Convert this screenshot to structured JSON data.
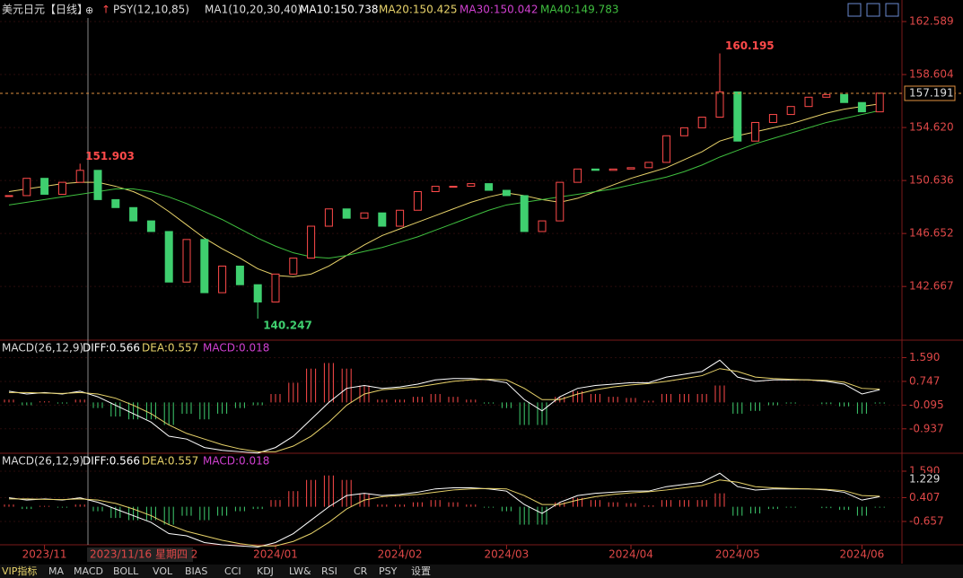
{
  "toolbar": {
    "symbol": "美元日元【日线】",
    "indicator": "PSY(12,10,85)",
    "ma_set": "MA1(10,20,30,40)",
    "ma10": "MA10:150.738",
    "ma20": "MA20:150.425",
    "ma30": "MA30:150.042",
    "ma40": "MA40:149.783"
  },
  "cursor_date": "2023/11/16 星期四 2",
  "tabs": [
    "VIP指标",
    "MA",
    "MACD",
    "BOLL",
    "VOL",
    "BIAS",
    "CCI",
    "KDJ",
    "LW&",
    "RSI",
    "CR",
    "PSY",
    "设置"
  ],
  "chart_data": [
    {
      "type": "candlestick",
      "series": [
        {
          "name": "close",
          "color": "#ff4a4a",
          "values": [
            149.5,
            150.8,
            149.6,
            150.5,
            151.4,
            149.2,
            148.6,
            147.6,
            146.8,
            143.0,
            146.2,
            142.2,
            144.2,
            142.8,
            141.5,
            143.6,
            144.8,
            147.2,
            148.5,
            147.8,
            148.2,
            147.2,
            148.4,
            149.8,
            150.2,
            150.2,
            150.4,
            149.9,
            149.5,
            146.8,
            147.6,
            150.5,
            151.5,
            151.4,
            151.5,
            151.6,
            152.0,
            154.0,
            154.6,
            155.4,
            157.3,
            153.6,
            155.0,
            155.6,
            156.2,
            156.9,
            157.1,
            156.5,
            155.8,
            157.2
          ]
        },
        {
          "name": "MA20",
          "color": "#e8d36a",
          "values": [
            149.8,
            150.0,
            150.2,
            150.4,
            150.5,
            150.5,
            150.2,
            149.8,
            149.2,
            148.3,
            147.3,
            146.3,
            145.5,
            144.8,
            144.0,
            143.5,
            143.4,
            143.6,
            144.2,
            145.0,
            145.8,
            146.5,
            147.0,
            147.5,
            148.0,
            148.5,
            149.0,
            149.4,
            149.7,
            149.5,
            149.2,
            149.0,
            149.3,
            149.8,
            150.3,
            150.8,
            151.2,
            151.6,
            152.2,
            152.8,
            153.6,
            154.0,
            154.3,
            154.6,
            154.9,
            155.3,
            155.7,
            156.0,
            156.2,
            156.4
          ]
        },
        {
          "name": "MA40",
          "color": "#3fbf3f",
          "values": [
            148.8,
            149.0,
            149.2,
            149.4,
            149.6,
            149.8,
            150.0,
            150.0,
            149.8,
            149.4,
            148.9,
            148.3,
            147.7,
            147.0,
            146.3,
            145.7,
            145.2,
            144.9,
            144.8,
            145.0,
            145.3,
            145.6,
            146.0,
            146.4,
            146.9,
            147.4,
            147.9,
            148.4,
            148.8,
            149.0,
            149.2,
            149.4,
            149.6,
            149.8,
            150.0,
            150.3,
            150.6,
            150.9,
            151.3,
            151.8,
            152.4,
            152.9,
            153.4,
            153.8,
            154.2,
            154.6,
            155.0,
            155.3,
            155.6,
            155.9
          ]
        }
      ],
      "down_color": "#3fcf6f",
      "annotations": [
        {
          "index": 4,
          "value": 151.903,
          "label": "151.903",
          "color": "#ff4a4a"
        },
        {
          "index": 40,
          "value": 160.195,
          "label": "160.195",
          "color": "#ff4a4a"
        },
        {
          "index": 14,
          "value": 140.247,
          "label": "140.247",
          "color": "#3fcf6f"
        }
      ],
      "last_price": {
        "value": 157.191,
        "label": "157.191"
      },
      "ylim": [
        138.9,
        162.86
      ],
      "yticks": [
        162.589,
        158.604,
        {
          "value": 154.62,
          "label": "154.620"
        },
        150.636,
        146.652,
        142.667
      ],
      "xticks": [
        {
          "value": 2,
          "label": "2023/11"
        },
        {
          "value": 15,
          "label": "2024/01"
        },
        {
          "value": 22,
          "label": "2024/02"
        },
        {
          "value": 28,
          "label": "2024/03"
        },
        {
          "value": 35,
          "label": "2024/04"
        },
        {
          "value": 41,
          "label": "2024/05"
        },
        {
          "value": 48,
          "label": "2024/06"
        }
      ]
    },
    {
      "type": "macd",
      "title": "MACD(26,12,9)",
      "diff_label": "DIFF:0.566",
      "dea_label": "DEA:0.557",
      "macd_label": "MACD:0.018",
      "series": [
        {
          "name": "DIFF",
          "color": "#ffffff",
          "values": [
            0.4,
            0.3,
            0.35,
            0.3,
            0.4,
            0.2,
            -0.1,
            -0.4,
            -0.7,
            -1.2,
            -1.3,
            -1.6,
            -1.7,
            -1.75,
            -1.8,
            -1.6,
            -1.2,
            -0.6,
            0.0,
            0.5,
            0.6,
            0.5,
            0.55,
            0.65,
            0.8,
            0.85,
            0.85,
            0.8,
            0.7,
            0.1,
            -0.3,
            0.2,
            0.5,
            0.6,
            0.65,
            0.7,
            0.7,
            0.9,
            1.0,
            1.1,
            1.5,
            0.9,
            0.75,
            0.8,
            0.8,
            0.8,
            0.75,
            0.65,
            0.3,
            0.45
          ]
        },
        {
          "name": "DEA",
          "color": "#e8d36a",
          "values": [
            0.35,
            0.35,
            0.33,
            0.32,
            0.35,
            0.3,
            0.15,
            -0.1,
            -0.4,
            -0.8,
            -1.1,
            -1.3,
            -1.5,
            -1.65,
            -1.75,
            -1.75,
            -1.55,
            -1.2,
            -0.7,
            -0.1,
            0.3,
            0.45,
            0.5,
            0.55,
            0.65,
            0.75,
            0.8,
            0.82,
            0.8,
            0.5,
            0.1,
            0.1,
            0.3,
            0.45,
            0.55,
            0.62,
            0.67,
            0.75,
            0.85,
            0.95,
            1.2,
            1.1,
            0.9,
            0.85,
            0.82,
            0.8,
            0.78,
            0.72,
            0.5,
            0.47
          ]
        },
        {
          "name": "MACD",
          "color": "#ff4a4a",
          "values": [
            0.1,
            -0.1,
            0.04,
            -0.04,
            0.1,
            -0.2,
            -0.5,
            -0.6,
            -0.6,
            -0.8,
            -0.4,
            -0.6,
            -0.4,
            -0.2,
            -0.1,
            0.3,
            0.7,
            1.2,
            1.4,
            1.2,
            0.6,
            0.1,
            0.1,
            0.2,
            0.3,
            0.2,
            0.1,
            -0.04,
            -0.2,
            -0.8,
            -0.8,
            0.2,
            0.4,
            0.3,
            0.2,
            0.16,
            0.06,
            0.3,
            0.3,
            0.3,
            0.6,
            -0.4,
            -0.3,
            -0.1,
            -0.04,
            0.0,
            -0.06,
            -0.14,
            -0.4,
            -0.04
          ]
        }
      ],
      "down_color": "#3fcf6f",
      "ylim": [
        -1.74,
        2.115
      ],
      "yticks": [
        {
          "value": 1.59,
          "label": "1.590"
        },
        0.747,
        -0.095,
        -0.937
      ]
    },
    {
      "type": "macd",
      "title": "MACD(26,12,9)",
      "diff_label": "DIFF:0.566",
      "dea_label": "DEA:0.557",
      "macd_label": "MACD:0.018",
      "series": [
        {
          "name": "DIFF",
          "color": "#ffffff",
          "values": [
            0.4,
            0.3,
            0.35,
            0.3,
            0.4,
            0.2,
            -0.1,
            -0.4,
            -0.7,
            -1.2,
            -1.3,
            -1.6,
            -1.7,
            -1.75,
            -1.8,
            -1.6,
            -1.2,
            -0.6,
            0.0,
            0.5,
            0.6,
            0.5,
            0.55,
            0.65,
            0.8,
            0.85,
            0.85,
            0.8,
            0.7,
            0.1,
            -0.3,
            0.2,
            0.5,
            0.6,
            0.65,
            0.7,
            0.7,
            0.9,
            1.0,
            1.1,
            1.5,
            0.9,
            0.75,
            0.8,
            0.8,
            0.8,
            0.75,
            0.65,
            0.3,
            0.45
          ]
        },
        {
          "name": "DEA",
          "color": "#e8d36a",
          "values": [
            0.35,
            0.35,
            0.33,
            0.32,
            0.35,
            0.3,
            0.15,
            -0.1,
            -0.4,
            -0.8,
            -1.1,
            -1.3,
            -1.5,
            -1.65,
            -1.75,
            -1.75,
            -1.55,
            -1.2,
            -0.7,
            -0.1,
            0.3,
            0.45,
            0.5,
            0.55,
            0.65,
            0.75,
            0.8,
            0.82,
            0.8,
            0.5,
            0.1,
            0.1,
            0.3,
            0.45,
            0.55,
            0.62,
            0.67,
            0.75,
            0.85,
            0.95,
            1.2,
            1.1,
            0.9,
            0.85,
            0.82,
            0.8,
            0.78,
            0.72,
            0.5,
            0.47
          ]
        },
        {
          "name": "MACD",
          "color": "#ff4a4a",
          "values": [
            0.1,
            -0.1,
            0.04,
            -0.04,
            0.1,
            -0.2,
            -0.5,
            -0.6,
            -0.6,
            -0.8,
            -0.4,
            -0.6,
            -0.4,
            -0.2,
            -0.1,
            0.3,
            0.7,
            1.2,
            1.4,
            1.2,
            0.6,
            0.1,
            0.1,
            0.2,
            0.3,
            0.2,
            0.1,
            -0.04,
            -0.2,
            -0.8,
            -0.8,
            0.2,
            0.4,
            0.3,
            0.2,
            0.16,
            0.06,
            0.3,
            0.3,
            0.3,
            0.6,
            -0.4,
            -0.3,
            -0.1,
            -0.04,
            0.0,
            -0.06,
            -0.14,
            -0.4,
            -0.04
          ]
        }
      ],
      "down_color": "#3fcf6f",
      "last_value": {
        "value": 1.229,
        "label": "1.229"
      },
      "ylim": [
        -1.621,
        2.273
      ],
      "yticks": [
        {
          "value": 1.59,
          "label": "1.590"
        },
        0.407,
        -0.657
      ]
    }
  ]
}
